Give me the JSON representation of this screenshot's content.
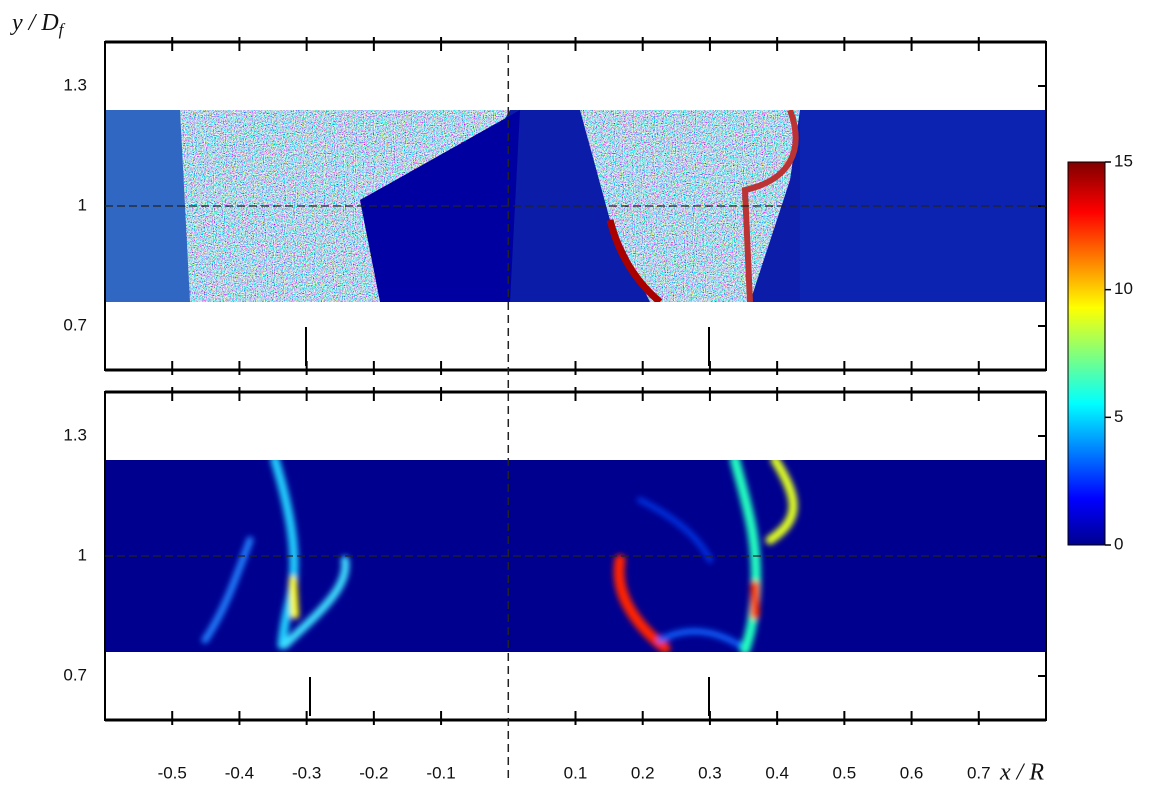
{
  "chart_data": {
    "type": "heatmap",
    "xlabel": "x / R",
    "ylabel": {
      "main": "y / D",
      "sub": "f"
    },
    "xlim": [
      -0.6,
      0.8
    ],
    "xticks": [
      -0.5,
      -0.4,
      -0.3,
      -0.2,
      -0.1,
      0.1,
      0.2,
      0.3,
      0.4,
      0.5,
      0.6,
      0.7
    ],
    "panels": [
      {
        "ylim": [
          0.59,
          1.41
        ],
        "yticks": [
          0.7,
          1,
          1.3
        ],
        "image_extent_y": [
          0.76,
          1.24
        ]
      },
      {
        "ylim": [
          0.59,
          1.41
        ],
        "yticks": [
          0.7,
          1,
          1.3
        ],
        "image_extent_y": [
          0.76,
          1.24
        ]
      }
    ],
    "colorbar": {
      "lim": [
        0,
        15
      ],
      "ticks": [
        0,
        5,
        10,
        15
      ]
    }
  }
}
